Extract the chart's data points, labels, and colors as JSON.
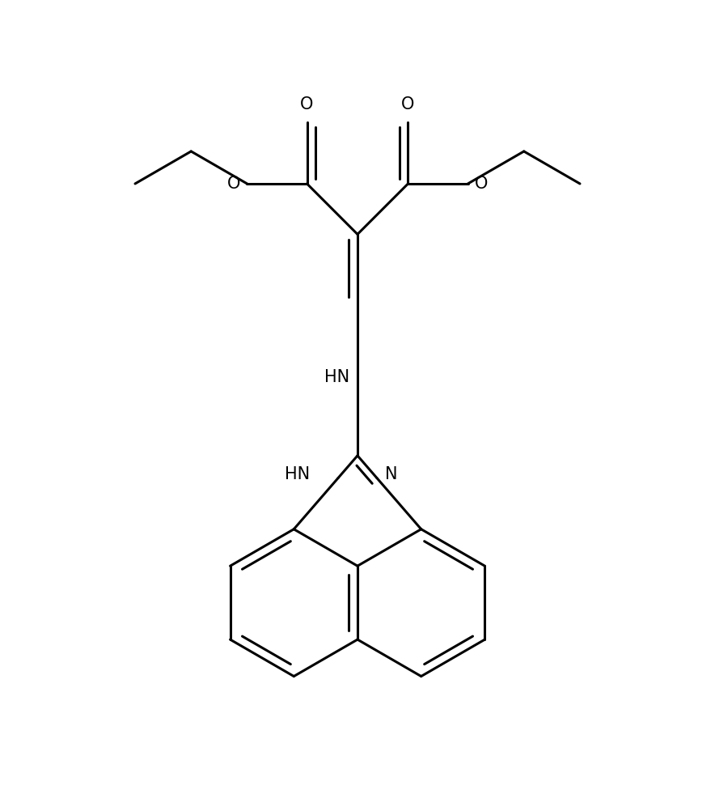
{
  "background_color": "#ffffff",
  "line_color": "#000000",
  "line_width": 2.2,
  "font_size": 15,
  "fig_width": 8.84,
  "fig_height": 9.76,
  "dpi": 100,
  "xlim": [
    -0.5,
    9.5
  ],
  "ylim": [
    -0.5,
    11.0
  ]
}
